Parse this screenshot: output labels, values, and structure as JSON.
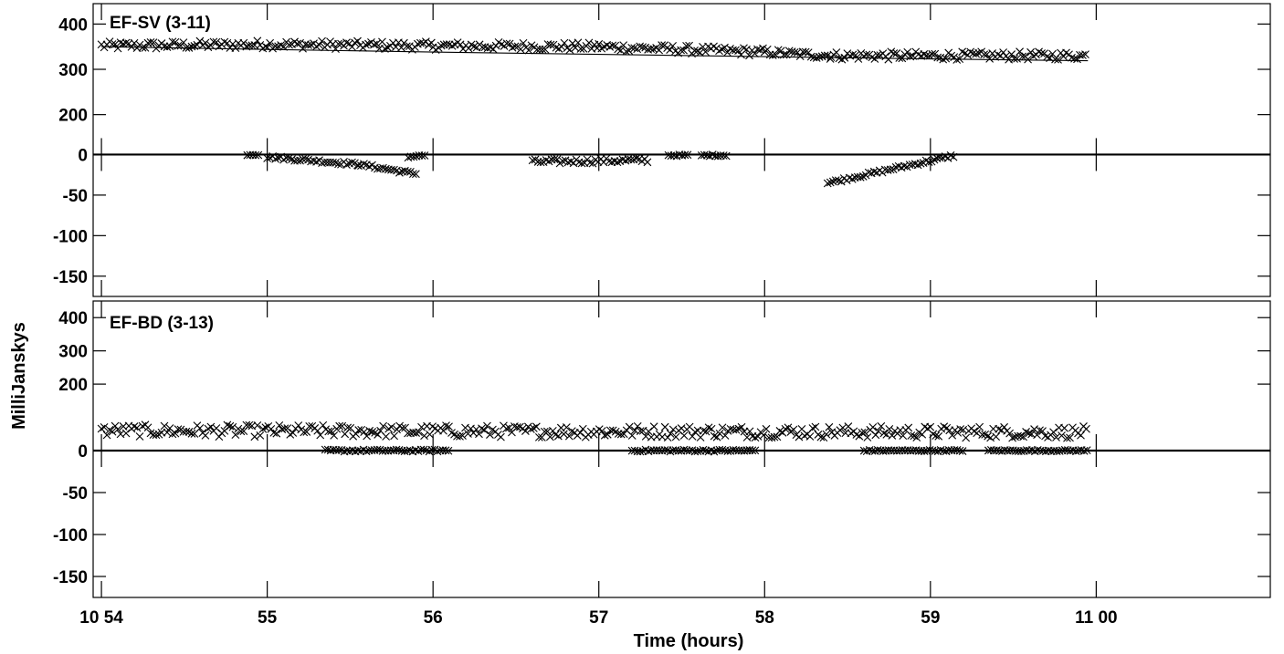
{
  "chart_data": {
    "type": "scatter",
    "xlabel": "Time (hours)",
    "ylabel": "MilliJanskys",
    "x_units": "minutes after 10:00",
    "xlim": [
      53.95,
      61.05
    ],
    "x_ticks": [
      {
        "value": 54,
        "label": "10 54"
      },
      {
        "value": 55,
        "label": "55"
      },
      {
        "value": 56,
        "label": "56"
      },
      {
        "value": 57,
        "label": "57"
      },
      {
        "value": 58,
        "label": "58"
      },
      {
        "value": 59,
        "label": "59"
      },
      {
        "value": 60,
        "label": "11 00"
      }
    ],
    "grid": false,
    "panels": [
      {
        "title": "EF-SV (3-11)",
        "upper": {
          "ylim": [
            155,
            445
          ],
          "yticks": [
            200,
            300,
            400
          ],
          "model_line": {
            "x": [
              54,
              55,
              56,
              57,
              58,
              59,
              59.95
            ],
            "y": [
              350,
              344,
              338,
              333,
              328,
              323,
              319
            ]
          },
          "points": [
            {
              "x_start": 54.0,
              "x_end": 55.0,
              "base_start": 352,
              "base_end": 355,
              "jitter": 9
            },
            {
              "x_start": 55.0,
              "x_end": 56.0,
              "base_start": 355,
              "base_end": 352,
              "jitter": 9
            },
            {
              "x_start": 56.0,
              "x_end": 57.0,
              "base_start": 352,
              "base_end": 350,
              "jitter": 9
            },
            {
              "x_start": 57.0,
              "x_end": 58.0,
              "base_start": 350,
              "base_end": 338,
              "jitter": 9
            },
            {
              "x_start": 58.0,
              "x_end": 58.4,
              "base_start": 338,
              "base_end": 330,
              "jitter": 8
            },
            {
              "x_start": 58.4,
              "x_end": 59.95,
              "base_start": 330,
              "base_end": 330,
              "jitter": 9
            }
          ]
        },
        "lower": {
          "ylim": [
            -175,
            5
          ],
          "yticks": [
            0,
            -50,
            -100,
            -150
          ],
          "zero_line": 0,
          "points": [
            {
              "x_start": 54.88,
              "x_end": 54.95,
              "base_start": 0,
              "base_end": 0,
              "jitter": 1
            },
            {
              "x_start": 55.0,
              "x_end": 55.55,
              "base_start": -3,
              "base_end": -12,
              "jitter": 2
            },
            {
              "x_start": 55.55,
              "x_end": 55.9,
              "base_start": -12,
              "base_end": -24,
              "jitter": 2
            },
            {
              "x_start": 55.85,
              "x_end": 55.95,
              "base_start": -3,
              "base_end": -1,
              "jitter": 1
            },
            {
              "x_start": 56.6,
              "x_end": 57.3,
              "base_start": -9,
              "base_end": -7,
              "jitter": 3
            },
            {
              "x_start": 57.42,
              "x_end": 57.55,
              "base_start": -1,
              "base_end": -1,
              "jitter": 1
            },
            {
              "x_start": 57.62,
              "x_end": 57.78,
              "base_start": -1,
              "base_end": -1,
              "jitter": 1
            },
            {
              "x_start": 58.38,
              "x_end": 59.15,
              "base_start": -35,
              "base_end": -1,
              "jitter": 2
            }
          ]
        }
      },
      {
        "title": "EF-BD (3-13)",
        "upper": {
          "ylim": [
            0,
            450
          ],
          "yticks": [
            0,
            200,
            300,
            400
          ],
          "zero_line": 0,
          "points": [
            {
              "x_start": 54.0,
              "x_end": 59.95,
              "base_start": 60,
              "base_end": 55,
              "jitter": 18
            }
          ],
          "near_zero_points": [
            {
              "x_start": 55.35,
              "x_end": 56.1,
              "base_start": 0,
              "base_end": 0,
              "jitter": 3
            },
            {
              "x_start": 57.2,
              "x_end": 57.95,
              "base_start": 0,
              "base_end": 0,
              "jitter": 3
            },
            {
              "x_start": 58.6,
              "x_end": 59.2,
              "base_start": 0,
              "base_end": 0,
              "jitter": 2
            },
            {
              "x_start": 59.35,
              "x_end": 59.95,
              "base_start": 0,
              "base_end": 0,
              "jitter": 2
            }
          ]
        },
        "lower": {
          "ylim": [
            -175,
            0
          ],
          "yticks": [
            -50,
            -100,
            -150
          ],
          "points": []
        }
      }
    ]
  }
}
